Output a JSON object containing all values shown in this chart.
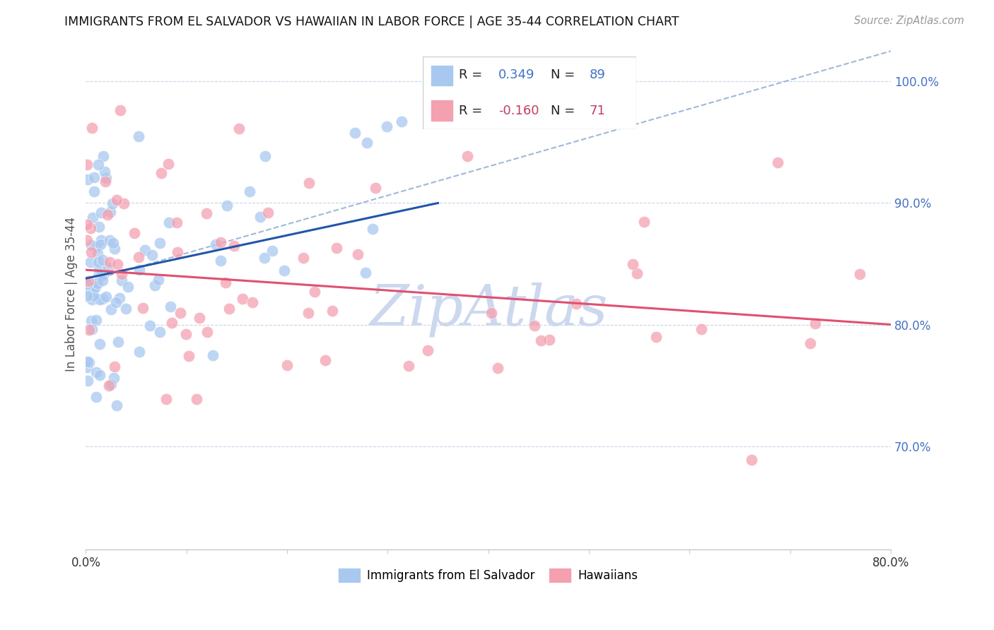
{
  "title": "IMMIGRANTS FROM EL SALVADOR VS HAWAIIAN IN LABOR FORCE | AGE 35-44 CORRELATION CHART",
  "source": "Source: ZipAtlas.com",
  "ylabel": "In Labor Force | Age 35-44",
  "x_min": 0.0,
  "x_max": 0.8,
  "y_min": 0.615,
  "y_max": 1.035,
  "y_ticks": [
    0.7,
    0.8,
    0.9,
    1.0
  ],
  "y_tick_labels_right": [
    "70.0%",
    "80.0%",
    "90.0%",
    "100.0%"
  ],
  "R_blue": 0.349,
  "N_blue": 89,
  "R_pink": -0.16,
  "N_pink": 71,
  "color_blue": "#a8c8f0",
  "color_pink": "#f4a0b0",
  "color_blue_line": "#2255aa",
  "color_pink_line": "#e05070",
  "color_blue_text": "#4472c4",
  "color_pink_text": "#c04060",
  "color_dashed": "#a0b8d8",
  "watermark_color": "#ccd8ee",
  "legend_label_blue": "Immigrants from El Salvador",
  "legend_label_pink": "Hawaiians",
  "blue_line_x0": 0.0,
  "blue_line_y0": 0.838,
  "blue_line_x1": 0.35,
  "blue_line_y1": 0.9,
  "pink_line_x0": 0.0,
  "pink_line_y0": 0.845,
  "pink_line_x1": 0.8,
  "pink_line_y1": 0.8,
  "dash_line_x0": 0.0,
  "dash_line_y0": 0.835,
  "dash_line_x1": 0.8,
  "dash_line_y1": 1.025
}
